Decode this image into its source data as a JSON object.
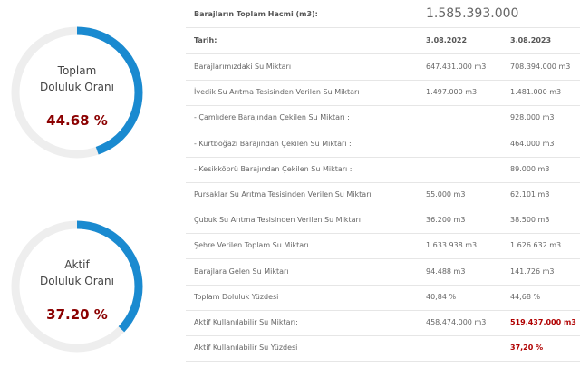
{
  "gauges": [
    {
      "title": "Toplam",
      "subtitle": "Doluluk Oranı",
      "value": 44.68,
      "label": "44.68 %"
    },
    {
      "title": "Aktif",
      "subtitle": "Doluluk Oranı",
      "value": 37.2,
      "label": "37.20 %"
    }
  ],
  "table": {
    "header": {
      "label": "Barajların Toplam Hacmi (m3):",
      "value": "1.585.393.000"
    },
    "columns": {
      "label": "Tarih:",
      "dates": [
        "3.08.2022",
        "3.08.2023"
      ]
    },
    "rows": [
      [
        "Barajlarımızdaki Su Miktarı",
        "647.431.000 m3",
        "708.394.000 m3"
      ],
      [
        "İvedik Su Arıtma Tesisinden Verilen Su Miktarı",
        "1.497.000 m3",
        "1.481.000 m3"
      ],
      [
        "- Çamlıdere Barajından Çekilen Su Miktarı :",
        null,
        "928.000 m3"
      ],
      [
        "- Kurtboğazı Barajından Çekilen Su Miktarı :",
        null,
        "464.000 m3"
      ],
      [
        "- Kesikköprü Barajından Çekilen Su Miktarı :",
        null,
        "89.000 m3"
      ],
      [
        "Pursaklar Su Arıtma Tesisinden Verilen Su Miktarı",
        "55.000 m3",
        "62.101 m3"
      ],
      [
        "Çubuk Su Arıtma Tesisinden Verilen Su Miktarı",
        "36.200 m3",
        "38.500 m3"
      ],
      [
        "Şehre Verilen Toplam Su Miktarı",
        "1.633.938 m3",
        "1.626.632 m3"
      ],
      [
        "Barajlara Gelen Su Miktarı",
        "94.488 m3",
        "141.726 m3"
      ],
      [
        "Toplam Doluluk Yüzdesi",
        "40,84 %",
        "44,68 %"
      ],
      [
        "Aktif Kullanılabilir Su Miktarı:",
        "458.474.000 m3",
        "519.437.000 m3"
      ],
      [
        "Aktif Kullanılabilir Su Yüzdesi",
        null,
        "37,20 %"
      ]
    ]
  }
}
